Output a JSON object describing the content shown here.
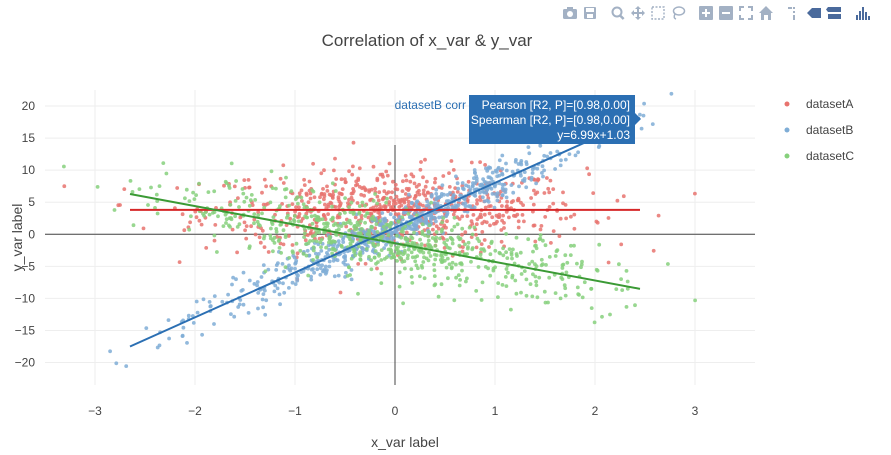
{
  "modebar": {
    "buttons": [
      "camera-icon",
      "save-icon",
      "zoom-icon",
      "pan-icon",
      "box-select-icon",
      "lasso-icon",
      "zoom-in-icon",
      "zoom-out-icon",
      "autoscale-icon",
      "home-icon",
      "spike-lines-icon",
      "hover-closest-icon",
      "hover-compare-icon",
      "plotly-logo-icon"
    ],
    "icon_color": "#a3b1c4",
    "active_color": "#4a6a9c"
  },
  "chart_data": {
    "type": "scatter",
    "title": "Correlation of x_var & y_var",
    "xlabel": "x_var label",
    "ylabel": "y_var label",
    "xlim": [
      -3.5,
      3.6
    ],
    "ylim": [
      -23.5,
      22.5
    ],
    "xticks": [
      -3,
      -2,
      -1,
      0,
      1,
      2,
      3
    ],
    "yticks": [
      -20,
      -15,
      -10,
      -5,
      0,
      5,
      10,
      15,
      20
    ],
    "grid": true,
    "legend_position": "top-right",
    "series": [
      {
        "name": "datasetA",
        "color": "#e8736e",
        "fit_color": "#d62728",
        "slope": 0.0,
        "intercept": 3.8,
        "noise": 3.2,
        "x_mean": 0.0,
        "x_sd": 0.95,
        "n": 700,
        "fit_x": [
          -2.65,
          2.45
        ]
      },
      {
        "name": "datasetB",
        "color": "#7fadd6",
        "fit_color": "#2b6fb3",
        "slope": 6.99,
        "intercept": 1.03,
        "noise": 1.6,
        "x_mean": 0.0,
        "x_sd": 0.95,
        "n": 700,
        "fit_x": [
          -2.65,
          2.45
        ]
      },
      {
        "name": "datasetC",
        "color": "#86d07c",
        "fit_color": "#3b9a35",
        "slope": -2.9,
        "intercept": -1.4,
        "noise": 2.7,
        "x_mean": 0.0,
        "x_sd": 1.1,
        "n": 700,
        "fit_x": [
          -2.65,
          2.45
        ]
      }
    ],
    "hover": {
      "series_label": "datasetB corr",
      "lines": [
        "Pearson [R2, P]=[0.98,0.00]",
        "Spearman [R2, P]=[0.98,0.00]",
        "y=6.99x+1.03"
      ],
      "bg_color": "#2b6fb3"
    }
  }
}
